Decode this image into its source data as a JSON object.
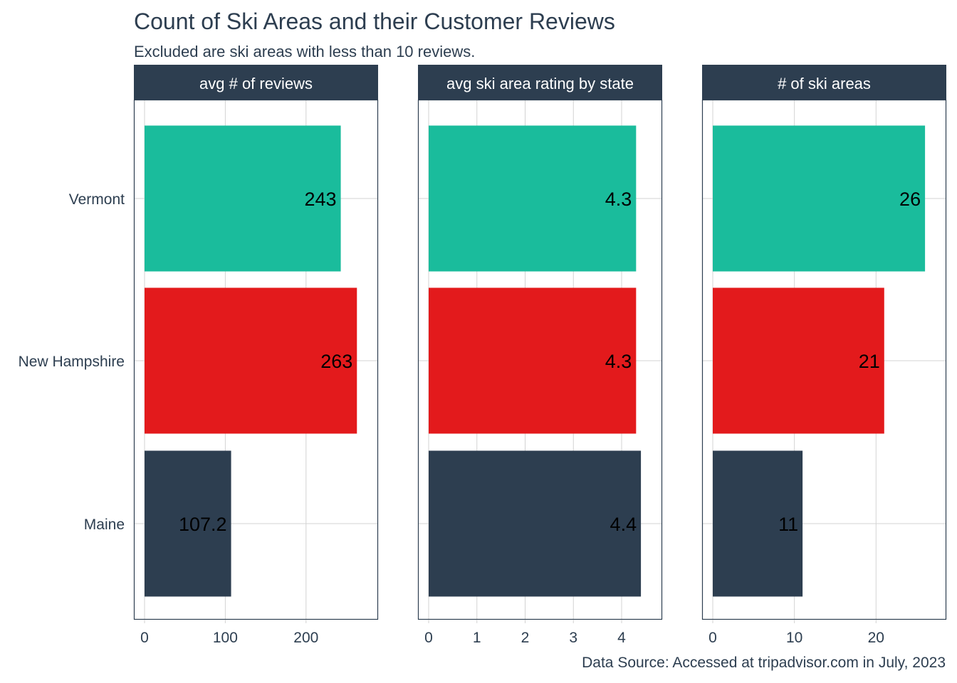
{
  "title": "Count of Ski Areas and their Customer Reviews",
  "subtitle": "Excluded are ski areas with less than 10 reviews.",
  "caption": "Data Source: Accessed at tripadvisor.com in July, 2023",
  "colors": {
    "Vermont": "#1abc9c",
    "New Hampshire": "#e31a1c",
    "Maine": "#2d3e50",
    "strip": "#2d3e50",
    "grid": "#d3d3d3",
    "text": "#2d3e50"
  },
  "chart_data": {
    "type": "bar",
    "orientation": "horizontal",
    "categories": [
      "Vermont",
      "New Hampshire",
      "Maine"
    ],
    "grid": true,
    "facets": [
      {
        "label": "avg # of reviews",
        "values": [
          243,
          263,
          107.2
        ],
        "value_labels": [
          "243",
          "263",
          "107.2"
        ],
        "xlim": [
          0,
          276
        ],
        "ticks": [
          0,
          100,
          200
        ],
        "tick_labels": [
          "0",
          "100",
          "200"
        ]
      },
      {
        "label": "avg ski area rating by state",
        "values": [
          4.3,
          4.3,
          4.4
        ],
        "value_labels": [
          "4.3",
          "4.3",
          "4.4"
        ],
        "xlim": [
          0,
          4.62
        ],
        "ticks": [
          0,
          1,
          2,
          3,
          4
        ],
        "tick_labels": [
          "0",
          "1",
          "2",
          "3",
          "4"
        ]
      },
      {
        "label": "# of ski areas",
        "values": [
          26,
          21,
          11
        ],
        "value_labels": [
          "26",
          "21",
          "11"
        ],
        "xlim": [
          0,
          27.3
        ],
        "ticks": [
          0,
          10,
          20
        ],
        "tick_labels": [
          "0",
          "10",
          "20"
        ]
      }
    ]
  }
}
